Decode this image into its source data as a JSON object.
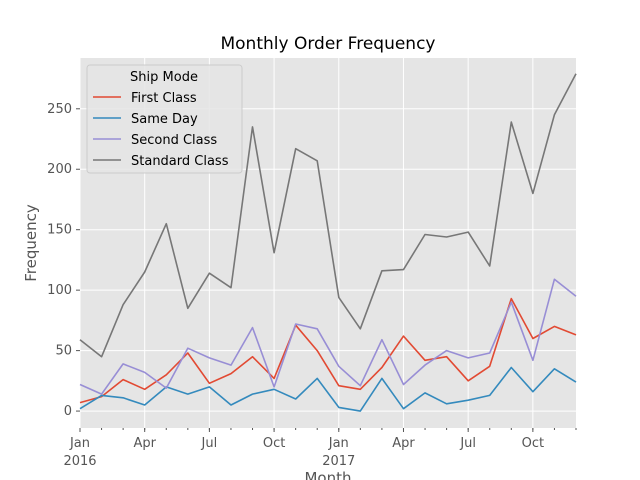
{
  "chart_data": {
    "type": "line",
    "title": "Monthly Order Frequency",
    "xlabel": "Month",
    "ylabel": "Frequency",
    "x": [
      "2016-01",
      "2016-02",
      "2016-03",
      "2016-04",
      "2016-05",
      "2016-06",
      "2016-07",
      "2016-08",
      "2016-09",
      "2016-10",
      "2016-11",
      "2016-12",
      "2017-01",
      "2017-02",
      "2017-03",
      "2017-04",
      "2017-05",
      "2017-06",
      "2017-07",
      "2017-08",
      "2017-09",
      "2017-10",
      "2017-11",
      "2017-12"
    ],
    "x_ticks": [
      {
        "x": "2016-01",
        "label": "Jan",
        "sublabel": "2016"
      },
      {
        "x": "2016-04",
        "label": "Apr",
        "sublabel": ""
      },
      {
        "x": "2016-07",
        "label": "Jul",
        "sublabel": ""
      },
      {
        "x": "2016-10",
        "label": "Oct",
        "sublabel": ""
      },
      {
        "x": "2017-01",
        "label": "Jan",
        "sublabel": "2017"
      },
      {
        "x": "2017-04",
        "label": "Apr",
        "sublabel": ""
      },
      {
        "x": "2017-07",
        "label": "Jul",
        "sublabel": ""
      },
      {
        "x": "2017-10",
        "label": "Oct",
        "sublabel": ""
      }
    ],
    "yticks": [
      0,
      50,
      100,
      150,
      200,
      250
    ],
    "ylim": [
      -14,
      292
    ],
    "grid": true,
    "legend": {
      "title": "Ship Mode",
      "placement": "top-left"
    },
    "series": [
      {
        "name": "First Class",
        "color": "#e24a33",
        "values": [
          7,
          12,
          26,
          18,
          30,
          48,
          23,
          31,
          45,
          27,
          71,
          50,
          21,
          18,
          36,
          62,
          42,
          45,
          25,
          37,
          93,
          60,
          70,
          63
        ]
      },
      {
        "name": "Same Day",
        "color": "#348abd",
        "values": [
          2,
          13,
          11,
          5,
          20,
          14,
          20,
          5,
          14,
          18,
          10,
          27,
          3,
          0,
          27,
          2,
          15,
          6,
          9,
          13,
          36,
          16,
          35,
          24
        ]
      },
      {
        "name": "Second Class",
        "color": "#988ed5",
        "values": [
          22,
          14,
          39,
          32,
          19,
          52,
          44,
          38,
          69,
          20,
          72,
          68,
          37,
          21,
          59,
          22,
          38,
          50,
          44,
          48,
          90,
          42,
          109,
          95
        ]
      },
      {
        "name": "Standard Class",
        "color": "#777777",
        "values": [
          59,
          45,
          88,
          115,
          155,
          85,
          114,
          102,
          235,
          131,
          217,
          207,
          94,
          68,
          116,
          117,
          146,
          144,
          148,
          120,
          239,
          180,
          245,
          279
        ]
      }
    ]
  }
}
